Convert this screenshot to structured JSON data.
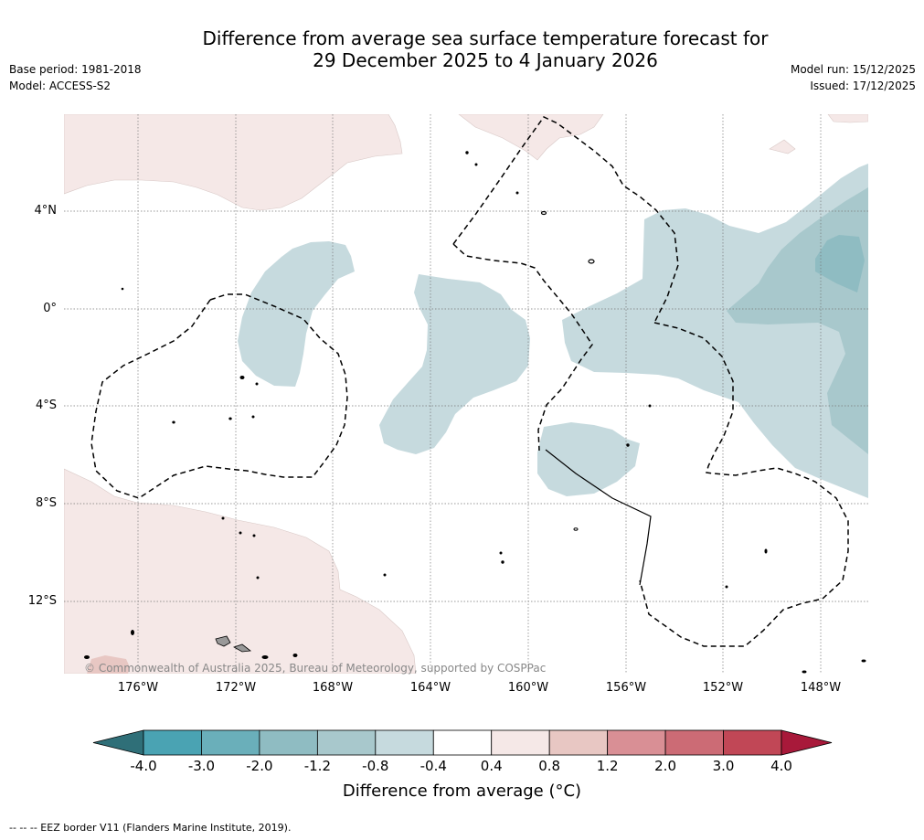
{
  "title": {
    "line1": "Difference from average sea surface temperature forecast for",
    "line2": "29 December 2025 to 4 January 2026"
  },
  "meta": {
    "base_period": "Base period: 1981-2018",
    "model": "Model: ACCESS-S2",
    "model_run": "Model run: 15/12/2025",
    "issued": "Issued: 17/12/2025"
  },
  "map": {
    "lat_labels": [
      "4°N",
      "0°",
      "4°S",
      "8°S",
      "12°S"
    ],
    "lon_labels": [
      "176°W",
      "172°W",
      "168°W",
      "164°W",
      "160°W",
      "156°W",
      "152°W",
      "148°W"
    ],
    "copyright": "© Commonwealth of Australia 2025, Bureau of Meteorology, supported by COSPPac"
  },
  "colorbar": {
    "ticks": [
      "-4.0",
      "-3.0",
      "-2.0",
      "-1.2",
      "-0.8",
      "-0.4",
      "0.4",
      "0.8",
      "1.2",
      "2.0",
      "3.0",
      "4.0"
    ],
    "colors": [
      "#4aa3b3",
      "#6aafba",
      "#8fbcc2",
      "#a8c8cc",
      "#c6dade",
      "#ffffff",
      "#f5e8e7",
      "#e8c7c3",
      "#d98f95",
      "#cc6b75",
      "#c14756"
    ],
    "low_color": "#2f6f78",
    "high_color": "#a8193a",
    "title": "Difference from average (°C)"
  },
  "footnote": "--  --  -- EEZ border V11 (Flanders Marine Institute, 2019)."
}
